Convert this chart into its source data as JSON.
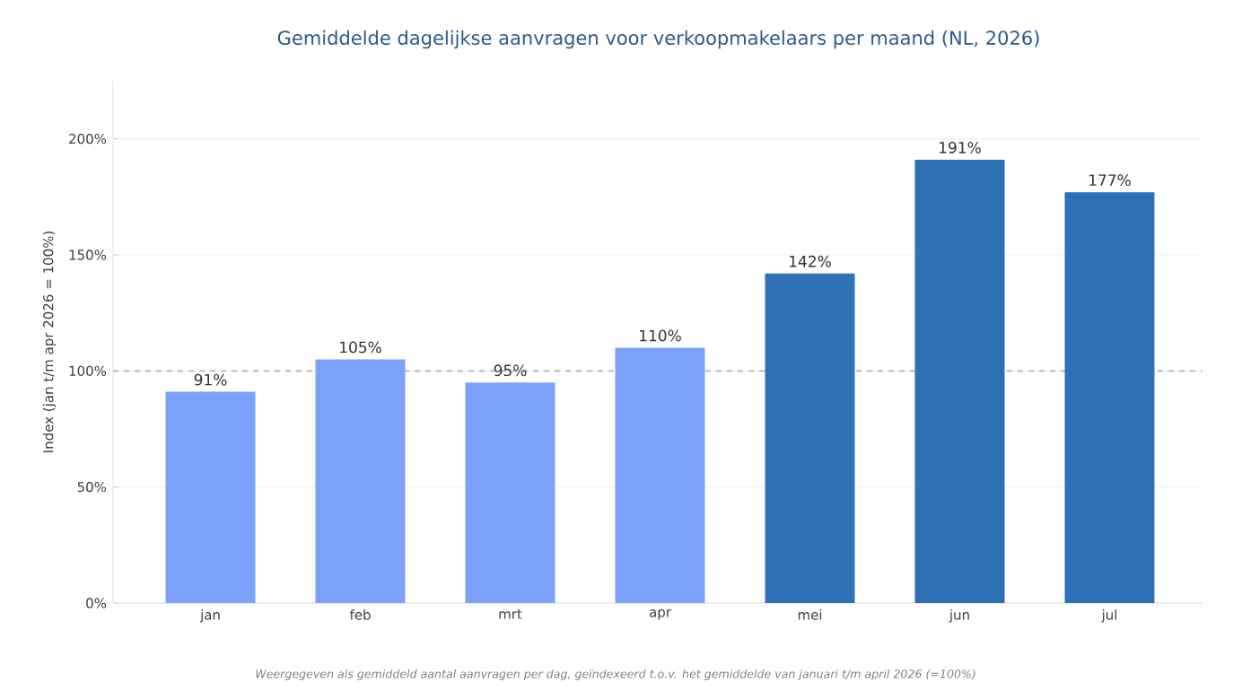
{
  "chart_data": {
    "type": "bar",
    "title": "Gemiddelde dagelijkse aanvragen voor verkoopmakelaars per maand (NL, 2026)",
    "ylabel": "Index (jan t/m apr 2026 = 100%)",
    "categories": [
      "jan",
      "feb",
      "mrt",
      "apr",
      "mei",
      "jun",
      "jul"
    ],
    "values": [
      91,
      105,
      95,
      110,
      142,
      191,
      177
    ],
    "value_labels": [
      "91%",
      "105%",
      "95%",
      "110%",
      "142%",
      "191%",
      "177%"
    ],
    "colors": [
      "#7ba1fb",
      "#7ba1fb",
      "#7ba1fb",
      "#7ba1fb",
      "#2e72b5",
      "#2e72b5",
      "#2e72b5"
    ],
    "ylim": [
      0,
      225
    ],
    "yticks": [
      {
        "value": 0,
        "label": "0%"
      },
      {
        "value": 50,
        "label": "50%"
      },
      {
        "value": 100,
        "label": "100%"
      },
      {
        "value": 150,
        "label": "150%"
      },
      {
        "value": 200,
        "label": "200%"
      }
    ],
    "grid": "y",
    "ref_lines": [
      {
        "axis": "y",
        "value": 100,
        "color": "#b0b0b0",
        "line_style": "dashed"
      }
    ],
    "annotations": [
      "Weergegeven als gemiddeld aantal aanvragen per dag, geïndexeerd t.o.v. het gemiddelde van januari t/m april 2026 (=100%)"
    ]
  }
}
